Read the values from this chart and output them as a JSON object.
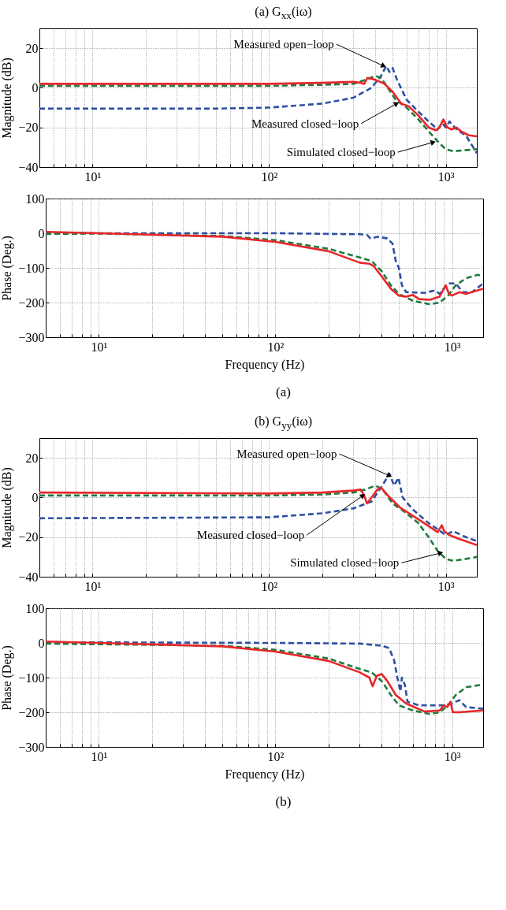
{
  "chart_data": [
    {
      "type": "line",
      "title": "(a) G$_{xx}$(iω)",
      "ylabel": "Magnitude (dB)",
      "log": "x",
      "grid": true,
      "xlim": [
        5,
        1500
      ],
      "xticks": [
        {
          "value": 10,
          "label": "10¹"
        },
        {
          "value": 100,
          "label": "10²"
        },
        {
          "value": 1000,
          "label": "10³"
        }
      ],
      "ylim": [
        -40,
        30
      ],
      "yticks": [
        -40,
        -20,
        0,
        20
      ],
      "series": [
        {
          "color": "#2e4fa3",
          "line_style": "dashed",
          "x": [
            5,
            50,
            100,
            200,
            300,
            380,
            430,
            460,
            480,
            500,
            530,
            600,
            700,
            800,
            900,
            960,
            1000,
            1050,
            1150,
            1300,
            1500
          ],
          "values": [
            -10.5,
            -10.5,
            -10,
            -8,
            -5,
            0,
            6,
            11,
            8,
            10,
            4,
            -6,
            -12,
            -17,
            -21,
            -18,
            -20,
            -17,
            -21,
            -24,
            -33
          ]
        },
        {
          "color": "#1e7a3c",
          "line_style": "dashed",
          "x": [
            5,
            100,
            200,
            300,
            350,
            400,
            430,
            470,
            520,
            600,
            700,
            800,
            900,
            1000,
            1100,
            1300,
            1500
          ],
          "values": [
            1,
            1,
            1.5,
            2,
            4,
            6,
            5,
            0,
            -6,
            -10,
            -16,
            -22,
            -27,
            -31,
            -32,
            -31.5,
            -31
          ]
        },
        {
          "color": "#e8262a",
          "line_style": "solid",
          "x": [
            5,
            20,
            100,
            200,
            300,
            330,
            345,
            360,
            400,
            450,
            500,
            560,
            620,
            700,
            800,
            880,
            920,
            970,
            1020,
            1080,
            1150,
            1220,
            1350,
            1500
          ],
          "values": [
            2,
            2,
            2,
            2.5,
            3,
            2.5,
            2,
            5,
            4,
            2,
            -2,
            -8,
            -9.5,
            -14,
            -20,
            -21.5,
            -20,
            -16,
            -20,
            -21,
            -20,
            -22,
            -24,
            -24.5
          ]
        }
      ],
      "annotations": [
        {
          "text": "Measured open−loop",
          "x": 445,
          "y": 11
        },
        {
          "text": "Measured closed−loop",
          "x": 527,
          "y": -8
        },
        {
          "text": "Simulated closed−loop",
          "x": 850,
          "y": -27.5
        }
      ]
    },
    {
      "type": "line",
      "xlabel": "Frequency (Hz)",
      "ylabel": "Phase (Deg.)",
      "log": "x",
      "grid": true,
      "xlim": [
        5,
        1500
      ],
      "xticks": [
        {
          "value": 10,
          "label": "10¹"
        },
        {
          "value": 100,
          "label": "10²"
        },
        {
          "value": 1000,
          "label": "10³"
        }
      ],
      "ylim": [
        -300,
        100
      ],
      "yticks": [
        -300,
        -200,
        -100,
        0,
        100
      ],
      "series": [
        {
          "color": "#2e4fa3",
          "line_style": "dashed",
          "x": [
            5,
            10,
            100,
            300,
            330,
            345,
            380,
            430,
            460,
            480,
            500,
            520,
            550,
            700,
            800,
            850,
            950,
            1050,
            1150,
            1300,
            1500
          ],
          "values": [
            2,
            0,
            0,
            -3,
            -5,
            -15,
            -10,
            -15,
            -30,
            -80,
            -100,
            -150,
            -170,
            -172,
            -165,
            -175,
            -145,
            -145,
            -170,
            -170,
            -145
          ]
        },
        {
          "color": "#1e7a3c",
          "line_style": "dashed",
          "x": [
            5,
            10,
            50,
            100,
            200,
            300,
            350,
            400,
            450,
            500,
            600,
            750,
            850,
            950,
            1050,
            1200,
            1400,
            1500
          ],
          "values": [
            -2,
            -1,
            -8,
            -20,
            -45,
            -70,
            -80,
            -110,
            -150,
            -175,
            -195,
            -205,
            -200,
            -180,
            -150,
            -130,
            -120,
            -125
          ]
        },
        {
          "color": "#e8262a",
          "line_style": "solid",
          "x": [
            5,
            10,
            50,
            100,
            200,
            300,
            340,
            360,
            400,
            450,
            500,
            550,
            600,
            650,
            750,
            850,
            920,
            960,
            1000,
            1100,
            1200,
            1500
          ],
          "values": [
            4,
            0,
            -10,
            -25,
            -52,
            -85,
            -88,
            -95,
            -125,
            -160,
            -180,
            -183,
            -178,
            -190,
            -192,
            -183,
            -150,
            -175,
            -180,
            -170,
            -175,
            -160
          ]
        }
      ],
      "annotations": [
        "(a)"
      ]
    },
    {
      "type": "line",
      "title": "(b) G$_{yy}$(iω)",
      "ylabel": "Magnitude (dB)",
      "log": "x",
      "grid": true,
      "xlim": [
        5,
        1500
      ],
      "xticks": [
        {
          "value": 10,
          "label": "10¹"
        },
        {
          "value": 100,
          "label": "10²"
        },
        {
          "value": 1000,
          "label": "10³"
        }
      ],
      "ylim": [
        -40,
        30
      ],
      "yticks": [
        -40,
        -20,
        0,
        20
      ],
      "series": [
        {
          "color": "#2e4fa3",
          "line_style": "dashed",
          "x": [
            5,
            100,
            200,
            300,
            380,
            430,
            480,
            510,
            540,
            570,
            650,
            800,
            900,
            1000,
            1100,
            1300,
            1500
          ],
          "values": [
            -10.5,
            -10,
            -8,
            -5.5,
            -2,
            5,
            12,
            6,
            10,
            0,
            -6,
            -13,
            -16,
            -19,
            -17,
            -20,
            -22
          ]
        },
        {
          "color": "#1e7a3c",
          "line_style": "dashed",
          "x": [
            5,
            100,
            200,
            300,
            350,
            400,
            440,
            500,
            600,
            700,
            800,
            900,
            1000,
            1100,
            1300,
            1500
          ],
          "values": [
            1,
            1,
            1.5,
            2.5,
            4,
            6,
            4,
            -3,
            -8,
            -13,
            -20,
            -27,
            -31,
            -32,
            -31,
            -30
          ]
        },
        {
          "color": "#e8262a",
          "line_style": "solid",
          "x": [
            5,
            100,
            200,
            300,
            330,
            345,
            358,
            380,
            410,
            430,
            470,
            550,
            700,
            850,
            900,
            950,
            980,
            1050,
            1200,
            1500
          ],
          "values": [
            2.5,
            2,
            2.5,
            3.5,
            4,
            1,
            -3,
            0,
            4,
            5,
            1,
            -5,
            -11,
            -16,
            -17.5,
            -14,
            -17,
            -19,
            -21,
            -24
          ]
        }
      ],
      "annotations": [
        {
          "text": "Measured open−loop",
          "x": 480,
          "y": 11
        },
        {
          "text": "Measured closed−loop",
          "x": 340,
          "y": 1
        },
        {
          "text": "Simulated closed−loop",
          "x": 935,
          "y": -28
        }
      ]
    },
    {
      "type": "line",
      "xlabel": "Frequency (Hz)",
      "ylabel": "Phase (Deg.)",
      "log": "x",
      "grid": true,
      "xlim": [
        5,
        1500
      ],
      "xticks": [
        {
          "value": 10,
          "label": "10¹"
        },
        {
          "value": 100,
          "label": "10²"
        },
        {
          "value": 1000,
          "label": "10³"
        }
      ],
      "ylim": [
        -300,
        100
      ],
      "yticks": [
        -300,
        -200,
        -100,
        0,
        100
      ],
      "series": [
        {
          "color": "#2e4fa3",
          "line_style": "dashed",
          "x": [
            5,
            100,
            300,
            400,
            440,
            470,
            490,
            510,
            520,
            540,
            560,
            650,
            900,
            1000,
            1100,
            1200,
            1500
          ],
          "values": [
            2,
            0,
            -2,
            -8,
            -15,
            -50,
            -100,
            -140,
            -100,
            -120,
            -170,
            -180,
            -180,
            -175,
            -165,
            -185,
            -190
          ]
        },
        {
          "color": "#1e7a3c",
          "line_style": "dashed",
          "x": [
            5,
            50,
            100,
            200,
            300,
            350,
            400,
            450,
            500,
            600,
            750,
            850,
            950,
            1050,
            1200,
            1500
          ],
          "values": [
            -2,
            -8,
            -20,
            -45,
            -75,
            -85,
            -110,
            -150,
            -180,
            -195,
            -205,
            -200,
            -180,
            -150,
            -128,
            -120
          ]
        },
        {
          "color": "#e8262a",
          "line_style": "solid",
          "x": [
            5,
            10,
            50,
            100,
            200,
            300,
            340,
            355,
            375,
            400,
            430,
            480,
            550,
            700,
            850,
            900,
            940,
            980,
            1010,
            1100,
            1300,
            1500
          ],
          "values": [
            4,
            0,
            -10,
            -25,
            -52,
            -85,
            -100,
            -125,
            -95,
            -90,
            -110,
            -150,
            -175,
            -198,
            -195,
            -180,
            -185,
            -170,
            -200,
            -200,
            -197,
            -195
          ]
        }
      ],
      "annotations": [
        "(b)"
      ]
    }
  ]
}
